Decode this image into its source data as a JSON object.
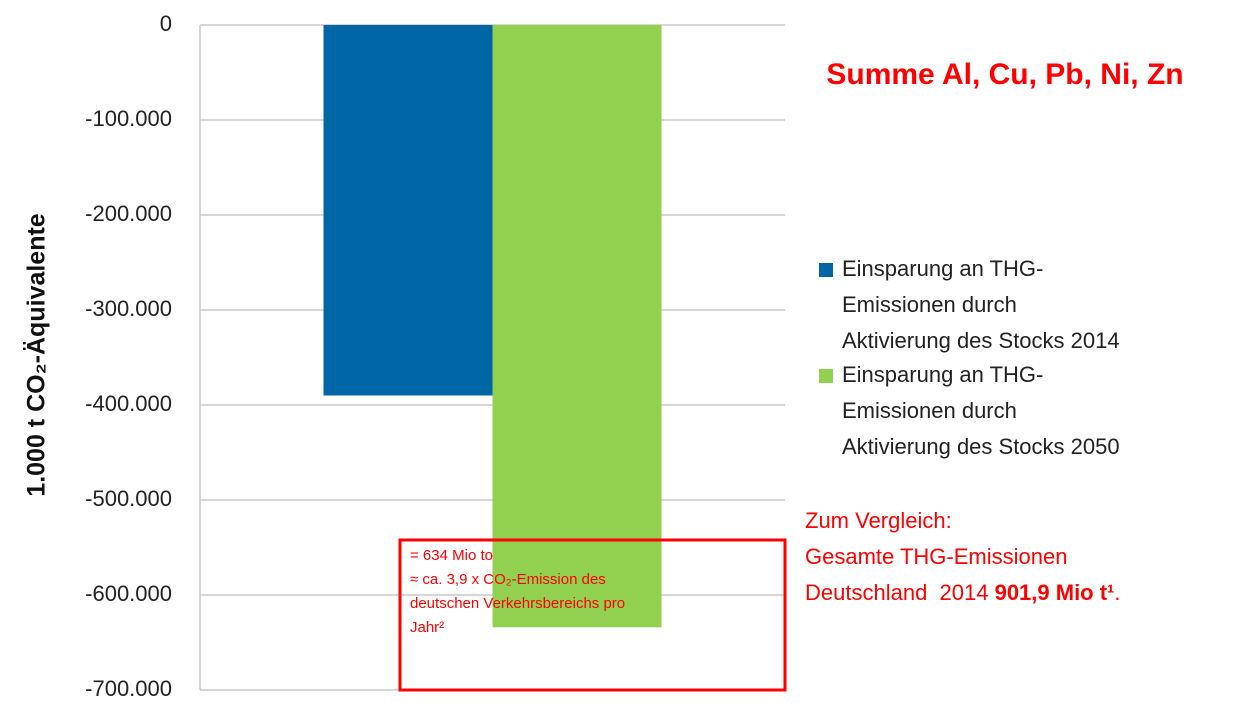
{
  "chart_data": {
    "type": "bar",
    "title": "Summe Al, Cu, Pb, Ni, Zn",
    "ylabel": "1.000 t CO₂-Äquivalente",
    "categories": [
      null
    ],
    "series": [
      {
        "name": "Einsparung an THG-Emissionen durch Aktivierung des Stocks 2014",
        "color": "#0066a5",
        "values": [
          -390000
        ]
      },
      {
        "name": "Einsparung an THG-Emissionen durch Aktivierung des Stocks 2050",
        "color": "#92d050",
        "values": [
          -634000
        ]
      }
    ],
    "ylim": [
      -700000,
      0
    ],
    "yticks": [
      0,
      {
        "value": -100000,
        "label": "-100.000"
      },
      {
        "value": -200000,
        "label": "-200.000"
      },
      {
        "value": -300000,
        "label": "-300.000"
      },
      {
        "value": -400000,
        "label": "-400.000"
      },
      {
        "value": -500000,
        "label": "-500.000"
      },
      {
        "value": -600000,
        "label": "-600.000"
      },
      {
        "value": -700000,
        "label": "-700.000"
      }
    ],
    "grid": true,
    "legend": "right",
    "annotation_box": [
      "= 634 Mio to",
      "≈  ca. 3,9 x CO₂-Emission des",
      "deutschen Verkehrsbereichs pro",
      "Jahr²"
    ],
    "comparison": {
      "lines": [
        "Zum Vergleich:",
        "Gesamte THG-Emissionen"
      ],
      "last_line": "Deutschland  2014 ",
      "bold": "901,9 Mio t¹",
      "end": "."
    }
  }
}
